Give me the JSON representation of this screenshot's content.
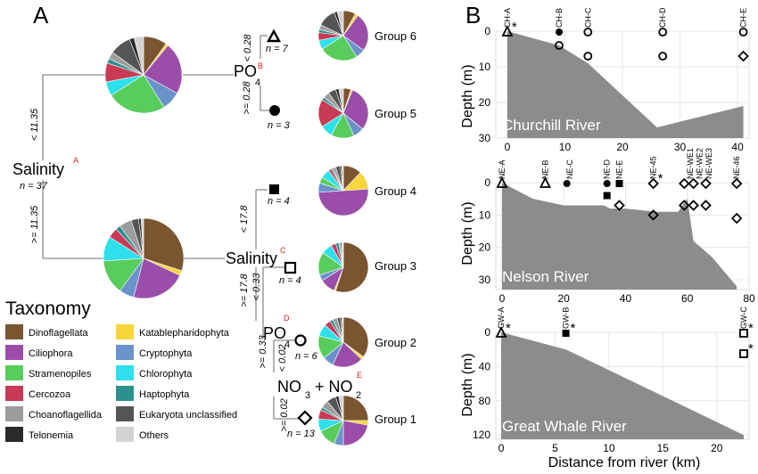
{
  "panel_a": {
    "label": "A",
    "root": {
      "var": "Salinity",
      "tag": "A",
      "n": "n = 37"
    },
    "split_upper": "< 11.35",
    "split_lower": ">= 11.35",
    "po4_b": {
      "var": "PO",
      "sub": "4",
      "tag": "B",
      "hi": "< 0.28",
      "lo": ">= 0.28"
    },
    "salinity_c": {
      "var": "Salinity",
      "tag": "C",
      "hi": "< 17.8",
      "lo": ">= 17.8"
    },
    "po4_d": {
      "var": "PO",
      "sub": "4",
      "tag": "D",
      "hi": "< 0.33",
      "lo": ">= 0.33"
    },
    "no_e": {
      "no3": "NO",
      "sub3": "3",
      "plus": "+ NO",
      "sub2": "2",
      "tag": "E",
      "hi": "< 0.02",
      "lo": ">= 0.02"
    },
    "leaves": [
      {
        "group": "Group 6",
        "n": "n = 7",
        "marker": "triangle-open"
      },
      {
        "group": "Group 5",
        "n": "n = 3",
        "marker": "circle-filled"
      },
      {
        "group": "Group 4",
        "n": "n = 4",
        "marker": "square-filled"
      },
      {
        "group": "Group 3",
        "n": "n = 4",
        "marker": "square-open"
      },
      {
        "group": "Group 2",
        "n": "n = 6",
        "marker": "circle-open"
      },
      {
        "group": "Group 1",
        "n": "n = 13",
        "marker": "diamond-open"
      }
    ]
  },
  "legend": {
    "title": "Taxonomy",
    "items": [
      {
        "label": "Dinoflagellata",
        "color": "#7B5530"
      },
      {
        "label": "Katablepharidophyta",
        "color": "#F6D63A"
      },
      {
        "label": "Ciliophora",
        "color": "#9A4EAA"
      },
      {
        "label": "Cryptophyta",
        "color": "#6A93C9"
      },
      {
        "label": "Stramenopiles",
        "color": "#58CC5C"
      },
      {
        "label": "Chlorophyta",
        "color": "#2EE0EC"
      },
      {
        "label": "Cercozoa",
        "color": "#C83A55"
      },
      {
        "label": "Haptophyta",
        "color": "#2E8F8F"
      },
      {
        "label": "Choanoflagellida",
        "color": "#9C9C9C"
      },
      {
        "label": "Eukaryota unclassified",
        "color": "#555555"
      },
      {
        "label": "Telonemia",
        "color": "#2A2A2A"
      },
      {
        "label": "Others",
        "color": "#D3D3D3"
      }
    ]
  },
  "pies": [
    {
      "name": "Salinity < 11.35",
      "fractions": [
        0.1,
        0.01,
        0.22,
        0.08,
        0.25,
        0.06,
        0.08,
        0.02,
        0.03,
        0.09,
        0.02,
        0.04
      ]
    },
    {
      "name": "Salinity >= 11.35",
      "fractions": [
        0.3,
        0.02,
        0.22,
        0.06,
        0.14,
        0.1,
        0.04,
        0.02,
        0.05,
        0.03,
        0.01,
        0.01
      ]
    },
    {
      "name": "Group 6",
      "fractions": [
        0.08,
        0.02,
        0.25,
        0.06,
        0.25,
        0.06,
        0.05,
        0.02,
        0.03,
        0.12,
        0.02,
        0.04
      ]
    },
    {
      "name": "Group 5",
      "fractions": [
        0.05,
        0.01,
        0.3,
        0.07,
        0.15,
        0.08,
        0.18,
        0.02,
        0.04,
        0.05,
        0.02,
        0.03
      ]
    },
    {
      "name": "Group 4",
      "fractions": [
        0.12,
        0.12,
        0.5,
        0.06,
        0.04,
        0.06,
        0.02,
        0.01,
        0.02,
        0.03,
        0.01,
        0.01
      ]
    },
    {
      "name": "Group 3",
      "fractions": [
        0.55,
        0.01,
        0.1,
        0.04,
        0.15,
        0.07,
        0.03,
        0.02,
        0.01,
        0.01,
        0.005,
        0.005
      ]
    },
    {
      "name": "Group 2",
      "fractions": [
        0.35,
        0.02,
        0.2,
        0.07,
        0.15,
        0.08,
        0.04,
        0.02,
        0.03,
        0.02,
        0.01,
        0.01
      ]
    },
    {
      "name": "Group 1",
      "fractions": [
        0.25,
        0.03,
        0.22,
        0.06,
        0.12,
        0.08,
        0.06,
        0.02,
        0.05,
        0.06,
        0.02,
        0.03
      ]
    }
  ],
  "panel_b": {
    "label": "B",
    "ylabel": "Depth (m)",
    "xlabel": "Distance from river (km)",
    "rivers": [
      {
        "name": "Churchill River",
        "xlim": [
          -2,
          42
        ],
        "ylim": [
          0,
          30
        ],
        "xticks": [
          "0",
          "10",
          "20",
          "30",
          "40"
        ],
        "xtick_vals": [
          0,
          10,
          20,
          30,
          40
        ],
        "yticks": [
          "0",
          "10",
          "20",
          "30"
        ],
        "ytick_vals": [
          0,
          10,
          20,
          30
        ],
        "bathymetry": [
          [
            0,
            0
          ],
          [
            9,
            4
          ],
          [
            14,
            9
          ],
          [
            26,
            27
          ],
          [
            41,
            21
          ]
        ],
        "stations": [
          {
            "label": "CH-A",
            "x": 0
          },
          {
            "label": "CH-B",
            "x": 9
          },
          {
            "label": "CH-C",
            "x": 14
          },
          {
            "label": "CH-D",
            "x": 27
          },
          {
            "label": "CH-E",
            "x": 41
          }
        ],
        "samples": [
          {
            "x": 0,
            "d": 0,
            "m": "triangle-open",
            "star": true
          },
          {
            "x": 9,
            "d": 0,
            "m": "circle-filled"
          },
          {
            "x": 9,
            "d": 4,
            "m": "circle-open"
          },
          {
            "x": 14,
            "d": 0,
            "m": "circle-open"
          },
          {
            "x": 14,
            "d": 7,
            "m": "circle-open"
          },
          {
            "x": 27,
            "d": 0,
            "m": "circle-open"
          },
          {
            "x": 27,
            "d": 7,
            "m": "circle-open"
          },
          {
            "x": 41,
            "d": 0,
            "m": "circle-open"
          },
          {
            "x": 41,
            "d": 7,
            "m": "diamond-open"
          }
        ]
      },
      {
        "name": "Nelson River",
        "xlim": [
          -2,
          80
        ],
        "ylim": [
          0,
          33
        ],
        "xticks": [
          "0",
          "20",
          "40",
          "60",
          "80"
        ],
        "xtick_vals": [
          0,
          20,
          40,
          60,
          80
        ],
        "yticks": [
          "0",
          "10",
          "20",
          "30"
        ],
        "ytick_vals": [
          0,
          10,
          20,
          30
        ],
        "bathymetry": [
          [
            0,
            0
          ],
          [
            10,
            5
          ],
          [
            20,
            7
          ],
          [
            33,
            7
          ],
          [
            35,
            8
          ],
          [
            40,
            8
          ],
          [
            50,
            9
          ],
          [
            57,
            9
          ],
          [
            60,
            5
          ],
          [
            62,
            18
          ],
          [
            68,
            23
          ],
          [
            76,
            32
          ]
        ],
        "stations": [
          {
            "label": "NE-A",
            "x": 0
          },
          {
            "label": "NE-B",
            "x": 14
          },
          {
            "label": "NE-C",
            "x": 22
          },
          {
            "label": "NE-D",
            "x": 34
          },
          {
            "label": "NE-E",
            "x": 38
          },
          {
            "label": "NE-45",
            "x": 49
          },
          {
            "label": "NE-WE1",
            "x": 61
          },
          {
            "label": "NE-WE2",
            "x": 64
          },
          {
            "label": "NE-WE3",
            "x": 67
          },
          {
            "label": "NE-46",
            "x": 76
          }
        ],
        "samples": [
          {
            "x": 0,
            "d": 0,
            "m": "triangle-open"
          },
          {
            "x": 14,
            "d": 0,
            "m": "triangle-open"
          },
          {
            "x": 21,
            "d": 0,
            "m": "circle-filled"
          },
          {
            "x": 34,
            "d": 0,
            "m": "circle-filled"
          },
          {
            "x": 38,
            "d": 0,
            "m": "square-filled"
          },
          {
            "x": 34,
            "d": 4,
            "m": "square-filled"
          },
          {
            "x": 38,
            "d": 7,
            "m": "diamond-open"
          },
          {
            "x": 49,
            "d": 0,
            "m": "diamond-open",
            "star": true
          },
          {
            "x": 49,
            "d": 10,
            "m": "diamond-open"
          },
          {
            "x": 59,
            "d": 0,
            "m": "diamond-open"
          },
          {
            "x": 62,
            "d": 0,
            "m": "diamond-open"
          },
          {
            "x": 66,
            "d": 0,
            "m": "diamond-open"
          },
          {
            "x": 59,
            "d": 7,
            "m": "diamond-open"
          },
          {
            "x": 62,
            "d": 7,
            "m": "diamond-open"
          },
          {
            "x": 66,
            "d": 7,
            "m": "diamond-open"
          },
          {
            "x": 76,
            "d": 0,
            "m": "diamond-open"
          },
          {
            "x": 76,
            "d": 11,
            "m": "diamond-open"
          }
        ]
      },
      {
        "name": "Great Whale River",
        "xlim": [
          -0.5,
          23
        ],
        "ylim": [
          0,
          125
        ],
        "xticks": [
          "0",
          "5",
          "10",
          "15",
          "20"
        ],
        "xtick_vals": [
          0,
          5,
          10,
          15,
          20
        ],
        "yticks": [
          "0",
          "40",
          "80",
          "120"
        ],
        "ytick_vals": [
          0,
          40,
          80,
          120
        ],
        "bathymetry": [
          [
            0,
            0
          ],
          [
            6,
            20
          ],
          [
            22.5,
            120
          ]
        ],
        "stations": [
          {
            "label": "GW-A",
            "x": 0
          },
          {
            "label": "GW-B",
            "x": 6
          },
          {
            "label": "GW-C",
            "x": 22.5
          }
        ],
        "samples": [
          {
            "x": 0,
            "d": 0,
            "m": "triangle-open",
            "star": true
          },
          {
            "x": 6,
            "d": 0,
            "m": "square-filled",
            "star": true
          },
          {
            "x": 22.5,
            "d": 0,
            "m": "square-open",
            "star": true
          },
          {
            "x": 22.5,
            "d": 25,
            "m": "square-open",
            "star": true
          }
        ]
      }
    ]
  }
}
